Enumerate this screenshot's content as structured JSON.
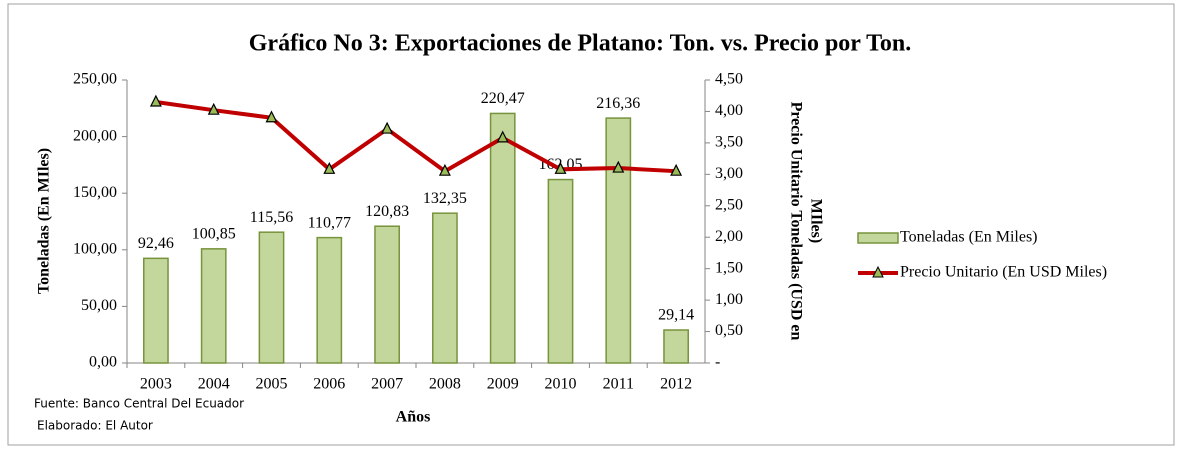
{
  "chart_data": {
    "type": "bar",
    "title": "Gráfico No 3: Exportaciones de Platano: Ton. vs. Precio por Ton.",
    "x_label": "Años",
    "y_label": "Toneladas (En MIles)",
    "y2_label": [
      "Precio Unitario Toneladas (USD en",
      "MIles)"
    ],
    "source": "Fuente: Banco Central Del Ecuador",
    "credit": "Elaborado: El Autor",
    "categories": [
      "2003",
      "2004",
      "2005",
      "2006",
      "2007",
      "2008",
      "2009",
      "2010",
      "2011",
      "2012"
    ],
    "series": [
      {
        "name": "Toneladas (En Miles)",
        "type": "bar",
        "color": "#c3d69b",
        "edge": "#77933c",
        "values": [
          92.46,
          100.85,
          115.56,
          110.77,
          120.83,
          132.35,
          220.47,
          162.05,
          216.36,
          29.14
        ],
        "value_labels": [
          "92,46",
          "100,85",
          "115,56",
          "110,77",
          "120,83",
          "132,35",
          "220,47",
          "162,05",
          "216,36",
          "29,14"
        ]
      },
      {
        "name": "Precio Unitario (En USD Miles)",
        "type": "line",
        "axis": "y2",
        "color": "#c00000",
        "marker_color": "#9bbb59",
        "values": [
          4.15,
          4.02,
          3.9,
          3.08,
          3.72,
          3.05,
          3.58,
          3.08,
          3.1,
          3.05
        ]
      }
    ],
    "ylim": [
      0,
      250
    ],
    "yticks": [
      {
        "value": 0,
        "label": "0,00"
      },
      {
        "value": 50,
        "label": "50,00"
      },
      {
        "value": 100,
        "label": "100,00"
      },
      {
        "value": 150,
        "label": "150,00"
      },
      {
        "value": 200,
        "label": "200,00"
      },
      {
        "value": 250,
        "label": "250,00"
      }
    ],
    "y2lim": [
      0,
      4.5
    ],
    "y2ticks": [
      {
        "value": 0,
        "label": "-"
      },
      {
        "value": 0.5,
        "label": "0,50"
      },
      {
        "value": 1,
        "label": "1,00"
      },
      {
        "value": 1.5,
        "label": "1,50"
      },
      {
        "value": 2,
        "label": "2,00"
      },
      {
        "value": 2.5,
        "label": "2,50"
      },
      {
        "value": 3,
        "label": "3,00"
      },
      {
        "value": 3.5,
        "label": "3,50"
      },
      {
        "value": 4,
        "label": "4,00"
      },
      {
        "value": 4.5,
        "label": "4,50"
      }
    ],
    "legend": "right"
  }
}
